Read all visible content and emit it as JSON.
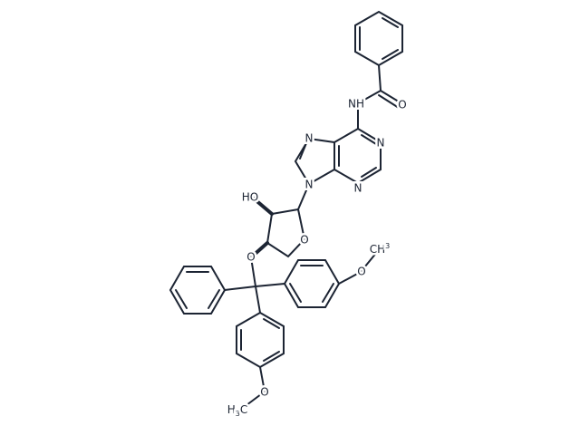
{
  "atoms": [
    {
      "label": "NH"
    },
    {
      "label": "O"
    },
    {
      "label": "N"
    },
    {
      "label": "N"
    },
    {
      "label": "N"
    },
    {
      "label": "N"
    },
    {
      "label": "HO"
    },
    {
      "label": "O"
    },
    {
      "label": "O"
    },
    {
      "label": "O"
    },
    {
      "main": "CH",
      "sub": "3"
    },
    {
      "label": "O"
    },
    {
      "main": "H",
      "sub": "3",
      "tail": "C"
    }
  ]
}
